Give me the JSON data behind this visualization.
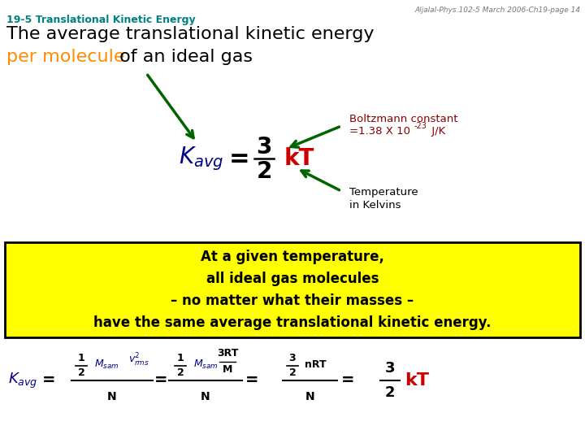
{
  "header_text": "Aljalal-Phys.102-5 March 2006-Ch19-page 14",
  "section_title": "19-5 Translational Kinetic Energy",
  "section_title_color": "#008080",
  "line1": "The average translational kinetic energy",
  "line2_part1": "per molecule",
  "line2_part2": " of an ideal gas",
  "line2_color1": "#FF8C00",
  "line2_color2": "#000000",
  "boltzmann_color": "#8B0000",
  "temp_color": "#000000",
  "box_bg": "#FFFF00",
  "box_border": "#000000",
  "box_text1": "At a given temperature,",
  "box_text2": "all ideal gas molecules",
  "box_text3": "– no matter what their masses –",
  "box_text4": "have the same average translational kinetic energy.",
  "text_color_dark": "#000000",
  "text_color_blue": "#00008B",
  "text_color_red": "#CC0000",
  "text_color_green": "#006400",
  "bg_color": "#FFFFFF"
}
